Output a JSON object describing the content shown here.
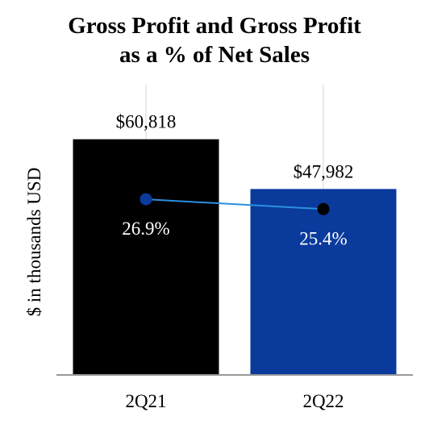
{
  "chart_data": {
    "type": "bar",
    "title_line1": "Gross Profit and Gross Profit",
    "title_line2": "as a % of Net Sales",
    "ylabel": "$ in thousands USD",
    "xlabel": "",
    "categories": [
      "2Q21",
      "2Q22"
    ],
    "values": [
      60818,
      47982
    ],
    "value_labels": [
      "$60,818",
      "$47,982"
    ],
    "bar_colors": [
      "#000000",
      "#0a3a9c"
    ],
    "ylim": [
      0,
      62000
    ],
    "line_series": {
      "values": [
        26.9,
        25.4
      ],
      "labels": [
        "26.9%",
        "25.4%"
      ],
      "ylim": [
        0,
        50
      ],
      "line_color": "#2b8fe0",
      "marker_colors": [
        "#0a3a9c",
        "#000000"
      ]
    },
    "grid": "vertical"
  }
}
